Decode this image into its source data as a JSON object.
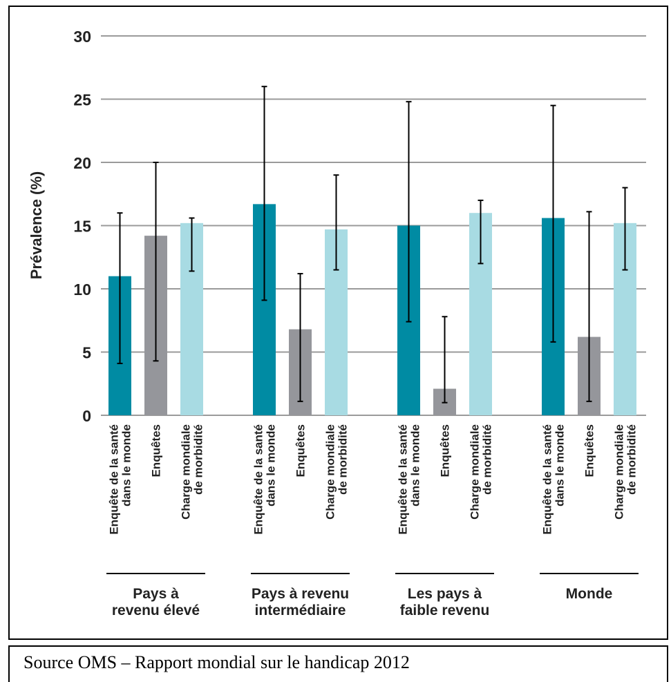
{
  "chart_data": {
    "type": "bar",
    "ylabel": "Prévalence (%)",
    "ylim": [
      0,
      30
    ],
    "yticks": [
      0,
      5,
      10,
      15,
      20,
      25,
      30
    ],
    "grid": true,
    "bar_labels": [
      "Enquête de la santé|dans le monde",
      "Enquêtes",
      "Charge mondiale|de morbidité"
    ],
    "groups": [
      {
        "label": "Pays à|revenu élevé",
        "bars": [
          {
            "series": "Enquête de la santé dans le monde",
            "value": 11.0,
            "err_low": 4.1,
            "err_high": 16.0
          },
          {
            "series": "Enquêtes",
            "value": 14.2,
            "err_low": 4.3,
            "err_high": 20.0
          },
          {
            "series": "Charge mondiale de morbidité",
            "value": 15.2,
            "err_low": 11.4,
            "err_high": 15.6
          }
        ]
      },
      {
        "label": "Pays à revenu|intermédiaire",
        "bars": [
          {
            "series": "Enquête de la santé dans le monde",
            "value": 16.7,
            "err_low": 9.1,
            "err_high": 26.0
          },
          {
            "series": "Enquêtes",
            "value": 6.8,
            "err_low": 1.1,
            "err_high": 11.2
          },
          {
            "series": "Charge mondiale de morbidité",
            "value": 14.7,
            "err_low": 11.5,
            "err_high": 19.0
          }
        ]
      },
      {
        "label": "Les pays à|faible revenu",
        "bars": [
          {
            "series": "Enquête de la santé dans le monde",
            "value": 15.0,
            "err_low": 7.4,
            "err_high": 24.8
          },
          {
            "series": "Enquêtes",
            "value": 2.1,
            "err_low": 1.0,
            "err_high": 7.8
          },
          {
            "series": "Charge mondiale de morbidité",
            "value": 16.0,
            "err_low": 12.0,
            "err_high": 17.0
          }
        ]
      },
      {
        "label": "Monde",
        "bars": [
          {
            "series": "Enquête de la santé dans le monde",
            "value": 15.6,
            "err_low": 5.8,
            "err_high": 24.5
          },
          {
            "series": "Enquêtes",
            "value": 6.2,
            "err_low": 1.1,
            "err_high": 16.1
          },
          {
            "series": "Charge mondiale de morbidité",
            "value": 15.2,
            "err_low": 11.5,
            "err_high": 18.0
          }
        ]
      }
    ],
    "colors": {
      "Enquête de la santé dans le monde": "#008ba3",
      "Enquêtes": "#95969b",
      "Charge mondiale de morbidité": "#a8dbe3",
      "grid": "#9a9a9a",
      "error_bar": "#000000"
    }
  },
  "source": "Source OMS – Rapport mondial sur le handicap 2012"
}
